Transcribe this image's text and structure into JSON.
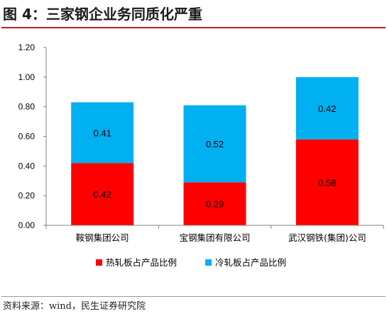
{
  "title": "图 4：三家钢企业务同质化严重",
  "source": "资料来源：wind，民生证券研究院",
  "colors": {
    "hot": "#ff0000",
    "cold": "#00b0f0",
    "axis": "#808080",
    "title_rule": "#b3211e"
  },
  "chart_data": {
    "type": "bar",
    "stacked": true,
    "categories": [
      "鞍钢集团公司",
      "宝钢集团有限公司",
      "武汉钢铁(集团)公司"
    ],
    "series": [
      {
        "name": "热轧板占产品比例",
        "values": [
          0.42,
          0.29,
          0.58
        ],
        "color": "#ff0000",
        "labels": [
          "0.42",
          "0.29",
          "0.58"
        ]
      },
      {
        "name": "冷轧板占产品比例",
        "values": [
          0.41,
          0.52,
          0.42
        ],
        "color": "#00b0f0",
        "labels": [
          "0.41",
          "0.52",
          "0.42"
        ]
      }
    ],
    "ylim": [
      0,
      1.2
    ],
    "yticks": [
      "0.00",
      "0.20",
      "0.40",
      "0.60",
      "0.80",
      "1.00",
      "1.20"
    ],
    "ytick_values": [
      0,
      0.2,
      0.4,
      0.6,
      0.8,
      1.0,
      1.2
    ],
    "grid": false,
    "legend_position": "bottom"
  }
}
